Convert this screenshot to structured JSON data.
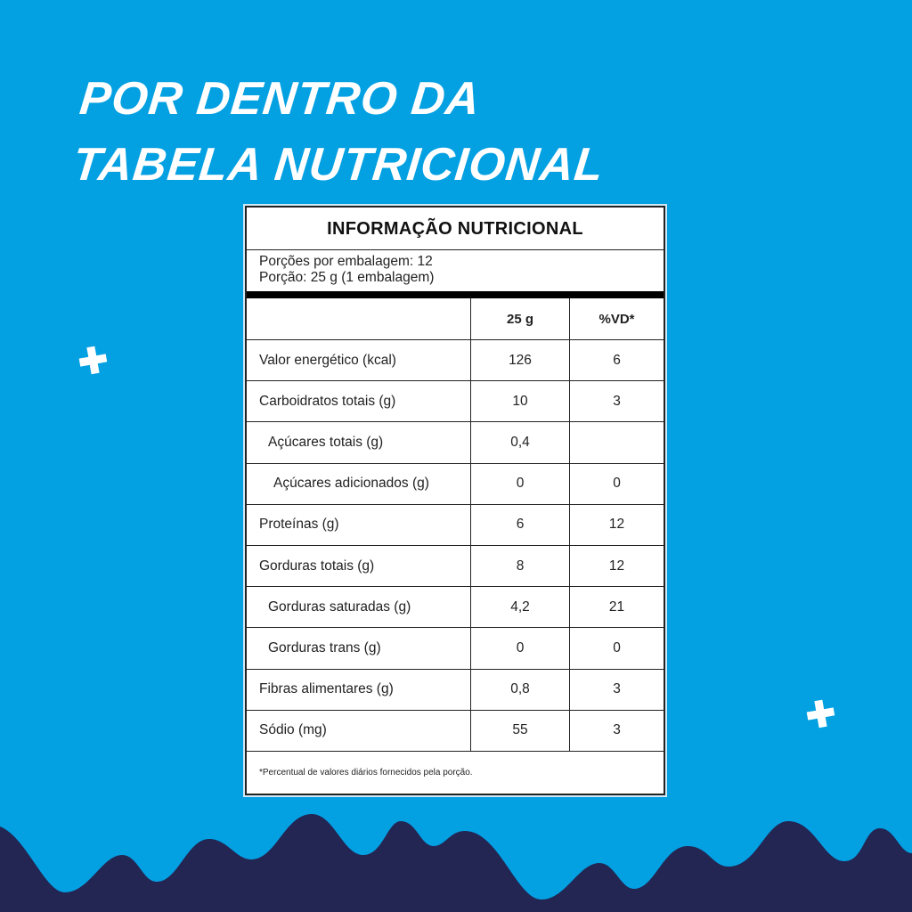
{
  "headline": [
    "POR DENTRO DA",
    "TABELA NUTRICIONAL"
  ],
  "colors": {
    "background": "#03a0e2",
    "wave": "#232553",
    "text": "#ffffff"
  },
  "decorations": [
    "plus-icon",
    "plus-icon"
  ],
  "table": {
    "title": "INFORMAÇÃO NUTRICIONAL",
    "servings_per_package": "Porções por embalagem: 12",
    "serving_size": "Porção: 25 g (1 embalagem)",
    "columns": [
      "",
      "25 g",
      "%VD*"
    ],
    "rows": [
      {
        "name": "Valor energético (kcal)",
        "amount": "126",
        "dv": "6",
        "indent": 0
      },
      {
        "name": "Carboidratos totais (g)",
        "amount": "10",
        "dv": "3",
        "indent": 0
      },
      {
        "name": "Açúcares totais (g)",
        "amount": "0,4",
        "dv": "",
        "indent": 1
      },
      {
        "name": "Açúcares adicionados (g)",
        "amount": "0",
        "dv": "0",
        "indent": 2
      },
      {
        "name": "Proteínas (g)",
        "amount": "6",
        "dv": "12",
        "indent": 0
      },
      {
        "name": "Gorduras totais (g)",
        "amount": "8",
        "dv": "12",
        "indent": 0
      },
      {
        "name": "Gorduras saturadas (g)",
        "amount": "4,2",
        "dv": "21",
        "indent": 1
      },
      {
        "name": "Gorduras trans (g)",
        "amount": "0",
        "dv": "0",
        "indent": 1
      },
      {
        "name": "Fibras alimentares (g)",
        "amount": "0,8",
        "dv": "3",
        "indent": 0
      },
      {
        "name": "Sódio (mg)",
        "amount": "55",
        "dv": "3",
        "indent": 0
      }
    ],
    "footnote": "*Percentual de valores diários fornecidos pela porção."
  }
}
